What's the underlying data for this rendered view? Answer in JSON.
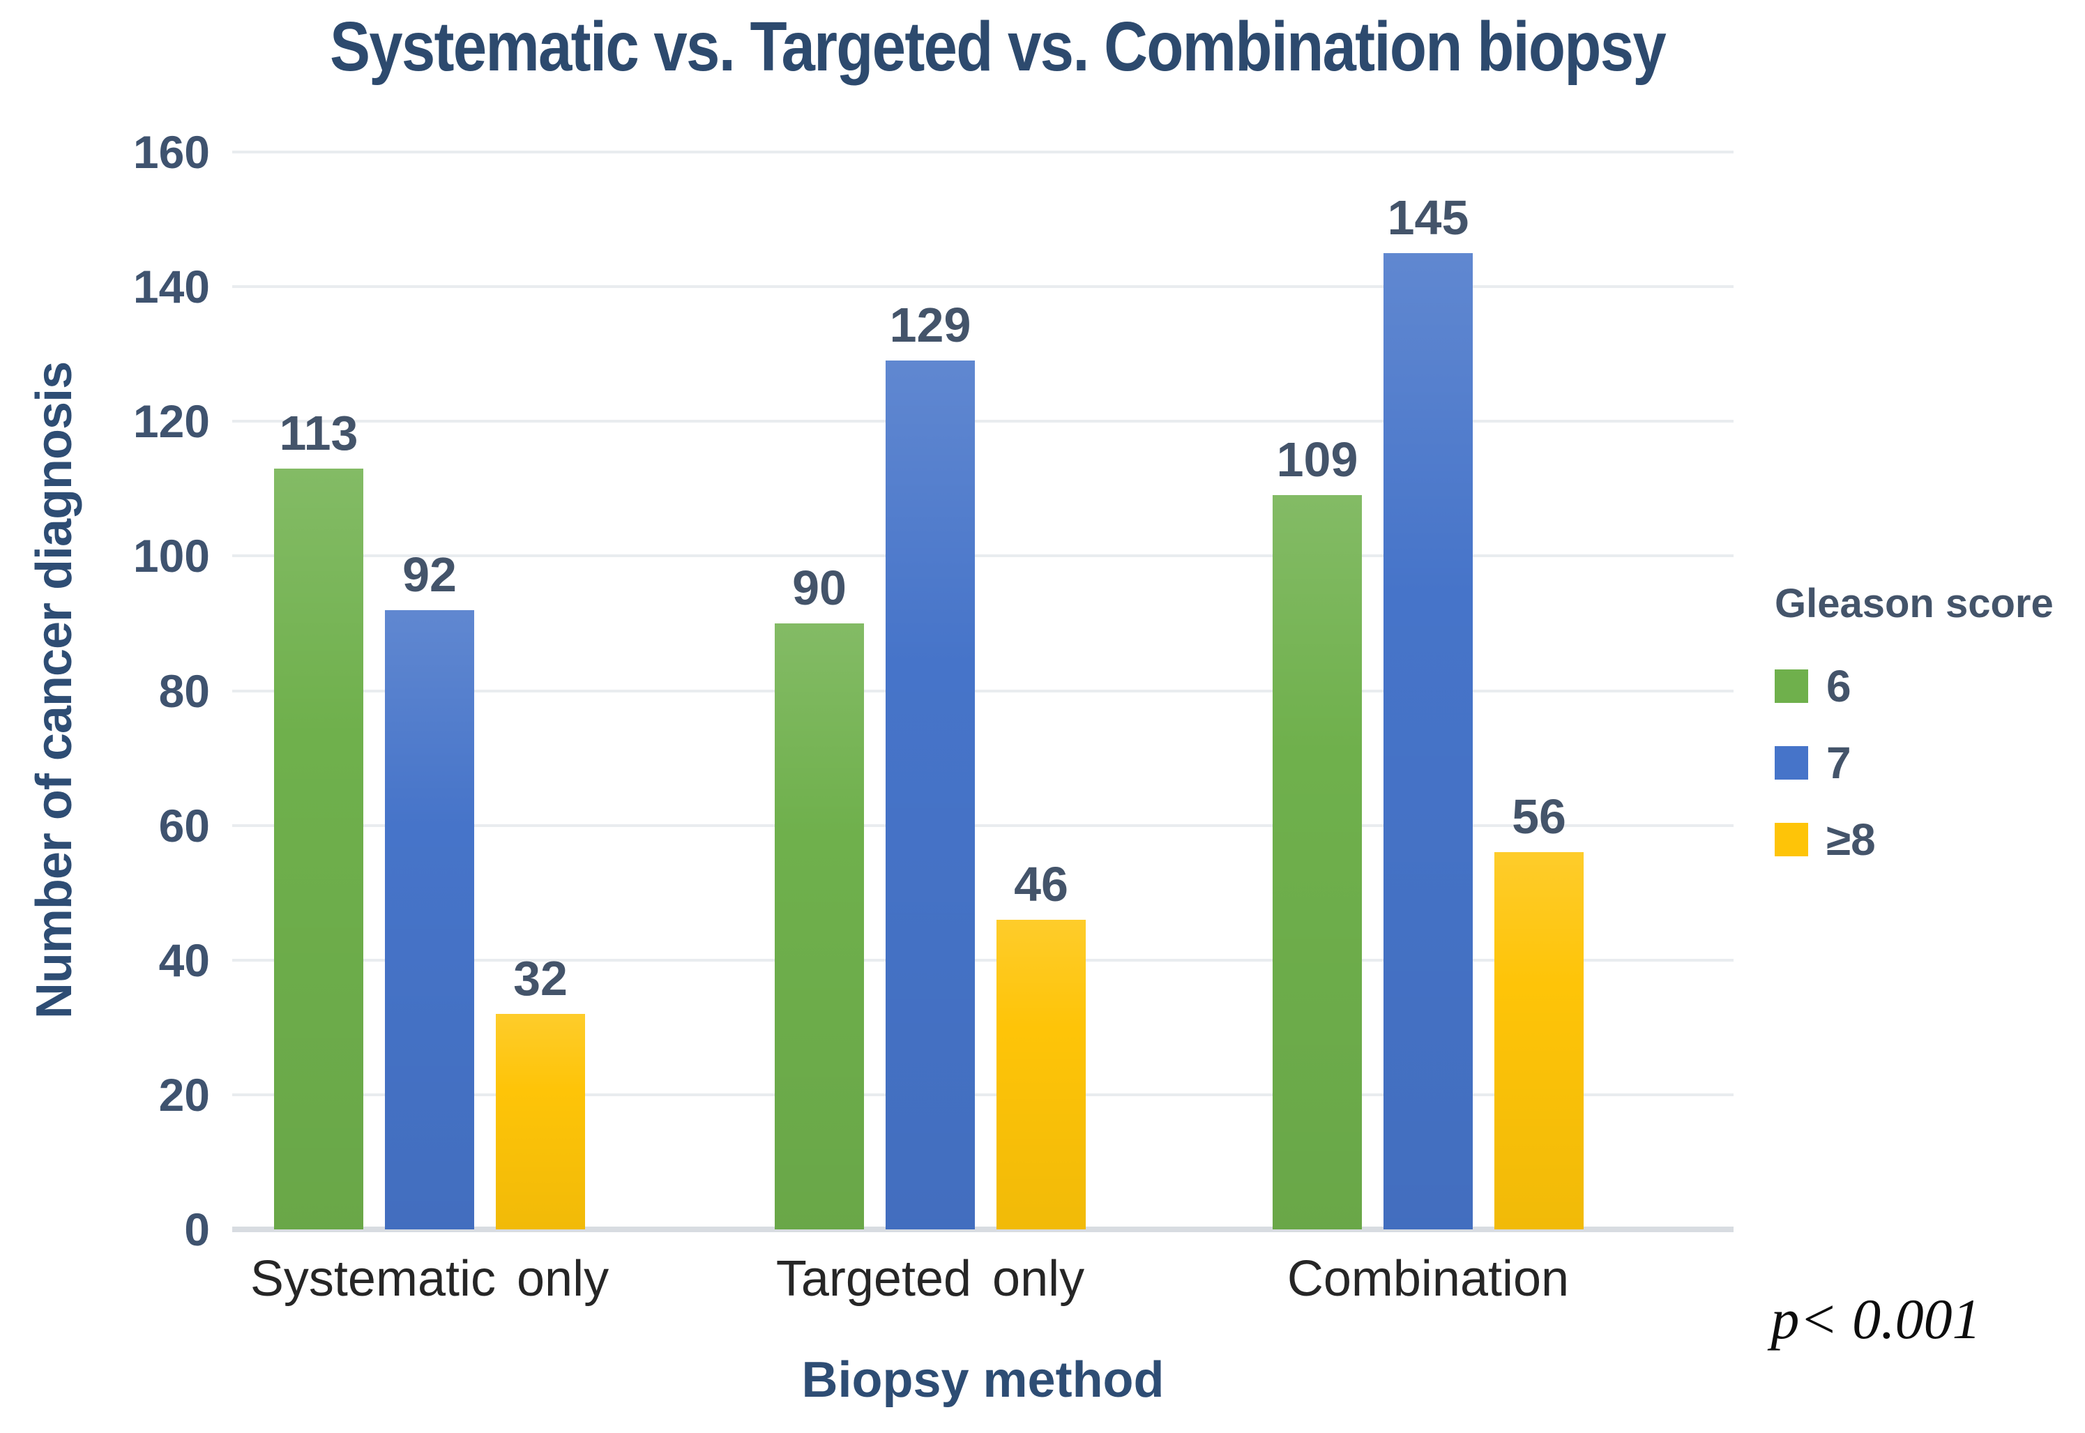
{
  "title": "Systematic vs. Targeted vs. Combination biopsy",
  "y_axis": {
    "label": "Number of cancer diagnosis",
    "ticks": [
      "0",
      "20",
      "40",
      "60",
      "80",
      "100",
      "120",
      "140",
      "160"
    ]
  },
  "x_axis": {
    "label": "Biopsy method",
    "categories": [
      "Systematic only",
      "Targeted only",
      "Combination"
    ]
  },
  "legend": {
    "title": "Gleason score",
    "entries": [
      {
        "label": "6",
        "color": "#6fb04c"
      },
      {
        "label": "7",
        "color": "#4674c9"
      },
      {
        "label": "≥8",
        "color": "#fec408"
      }
    ]
  },
  "annotation": {
    "p_value": "p< 0.001"
  },
  "colors": {
    "title_navy": "#2d4a6e",
    "axis_label_navy": "#2e4d74",
    "tick_slate": "#3f536f",
    "data_label_slate": "#44546a",
    "category_text": "#262626",
    "gridline": "#e9ecef",
    "axis_line": "#d8dce1",
    "background": "#ffffff"
  },
  "chart_data": {
    "type": "bar",
    "title": "Systematic vs. Targeted vs. Combination biopsy",
    "categories": [
      "Systematic only",
      "Targeted only",
      "Combination"
    ],
    "series": [
      {
        "name": "6",
        "color": "#6fb04c",
        "values": [
          113,
          90,
          109
        ]
      },
      {
        "name": "7",
        "color": "#4674c9",
        "values": [
          92,
          129,
          145
        ]
      },
      {
        "name": "≥8",
        "color": "#fec408",
        "values": [
          32,
          46,
          56
        ]
      }
    ],
    "xlabel": "Biopsy method",
    "ylabel": "Number of cancer diagnosis",
    "ylim": [
      0,
      160
    ],
    "ytick_step": 20,
    "grid": true,
    "legend_position": "right",
    "data_labels": true
  }
}
